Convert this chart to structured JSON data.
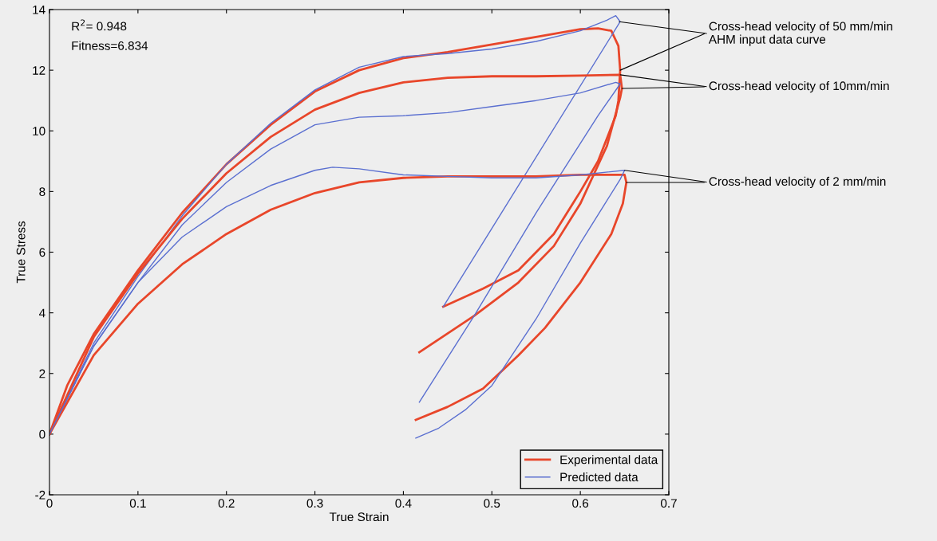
{
  "chart_data": {
    "type": "line",
    "xlabel": "True Strain",
    "ylabel": "True Stress",
    "xlim": [
      0,
      0.7
    ],
    "ylim": [
      -2,
      14
    ],
    "xticks": [
      0,
      0.1,
      0.2,
      0.3,
      0.4,
      0.5,
      0.6,
      0.7
    ],
    "yticks": [
      -2,
      0,
      2,
      4,
      6,
      8,
      10,
      12,
      14
    ],
    "grid": false,
    "legend": "bottom right",
    "marker": "none",
    "line_style": "solid",
    "series": [
      {
        "name": "Experimental data",
        "color": "#e8462a",
        "x": [
          0,
          0.02,
          0.05,
          0.1,
          0.15,
          0.2,
          0.25,
          0.3,
          0.35,
          0.4,
          0.45,
          0.5,
          0.55,
          0.6,
          0.62,
          0.635,
          0.643,
          0.645,
          0.643,
          0.64,
          0.62,
          0.6,
          0.57,
          0.53,
          0.49,
          0.445
        ],
        "values": [
          0,
          1.6,
          3.3,
          5.4,
          7.3,
          8.9,
          10.2,
          11.3,
          12.0,
          12.4,
          12.6,
          12.85,
          13.1,
          13.35,
          13.38,
          13.3,
          12.8,
          12.0,
          11.0,
          10.5,
          9.0,
          8.0,
          6.6,
          5.4,
          4.8,
          4.2
        ]
      },
      {
        "name": "Predicted data",
        "color": "#5a6fd0",
        "x": [
          0,
          0.05,
          0.1,
          0.15,
          0.2,
          0.25,
          0.3,
          0.35,
          0.4,
          0.45,
          0.5,
          0.55,
          0.6,
          0.63,
          0.64,
          0.645,
          0.445
        ],
        "values": [
          0,
          3.0,
          5.2,
          7.2,
          8.9,
          10.25,
          11.35,
          12.1,
          12.45,
          12.55,
          12.7,
          12.95,
          13.3,
          13.65,
          13.8,
          13.6,
          4.2
        ]
      },
      {
        "color": "#e8462a",
        "x": [
          0,
          0.05,
          0.1,
          0.15,
          0.2,
          0.25,
          0.3,
          0.35,
          0.4,
          0.45,
          0.5,
          0.55,
          0.6,
          0.645,
          0.647,
          0.645,
          0.63,
          0.6,
          0.57,
          0.53,
          0.48,
          0.418
        ],
        "values": [
          0,
          3.2,
          5.3,
          7.1,
          8.6,
          9.8,
          10.7,
          11.25,
          11.6,
          11.75,
          11.8,
          11.8,
          11.82,
          11.85,
          11.4,
          11.1,
          9.5,
          7.6,
          6.2,
          5.0,
          3.9,
          2.7
        ]
      },
      {
        "color": "#5a6fd0",
        "x": [
          0,
          0.05,
          0.1,
          0.15,
          0.2,
          0.25,
          0.3,
          0.35,
          0.4,
          0.45,
          0.5,
          0.55,
          0.6,
          0.64,
          0.645,
          0.62,
          0.55,
          0.48,
          0.418
        ],
        "values": [
          0,
          2.9,
          5.0,
          6.9,
          8.3,
          9.4,
          10.2,
          10.45,
          10.5,
          10.6,
          10.8,
          11.0,
          11.25,
          11.6,
          11.55,
          10.5,
          7.3,
          3.9,
          1.05
        ]
      },
      {
        "color": "#e8462a",
        "x": [
          0,
          0.05,
          0.1,
          0.15,
          0.2,
          0.25,
          0.3,
          0.35,
          0.4,
          0.45,
          0.5,
          0.55,
          0.6,
          0.65,
          0.652,
          0.648,
          0.635,
          0.6,
          0.56,
          0.53,
          0.49,
          0.45,
          0.414
        ],
        "values": [
          0,
          2.6,
          4.3,
          5.6,
          6.6,
          7.4,
          7.95,
          8.3,
          8.45,
          8.5,
          8.5,
          8.5,
          8.55,
          8.55,
          8.3,
          7.6,
          6.6,
          5.0,
          3.5,
          2.6,
          1.5,
          0.9,
          0.47
        ]
      },
      {
        "color": "#5a6fd0",
        "x": [
          0,
          0.05,
          0.1,
          0.15,
          0.2,
          0.25,
          0.3,
          0.32,
          0.35,
          0.4,
          0.45,
          0.5,
          0.55,
          0.6,
          0.65,
          0.645,
          0.6,
          0.55,
          0.5,
          0.47,
          0.44,
          0.414
        ],
        "values": [
          0,
          2.9,
          5.0,
          6.5,
          7.5,
          8.2,
          8.7,
          8.8,
          8.75,
          8.55,
          8.5,
          8.45,
          8.45,
          8.55,
          8.7,
          8.4,
          6.3,
          3.8,
          1.6,
          0.8,
          0.2,
          -0.13
        ]
      }
    ],
    "annotations": [
      "R$^{2}$= 0.948",
      "Fitness=6.834",
      {
        "text": "Cross-head velocity of 50 mm/min\nAHM input data curve",
        "x": 0.644,
        "y": 13.6
      },
      {
        "text": "Cross-head velocity of 10mm/min",
        "x": 0.645,
        "y": 11.85
      },
      {
        "text": "Cross-head velocity of 2 mm/min",
        "x": 0.65,
        "y": 8.7
      }
    ]
  }
}
